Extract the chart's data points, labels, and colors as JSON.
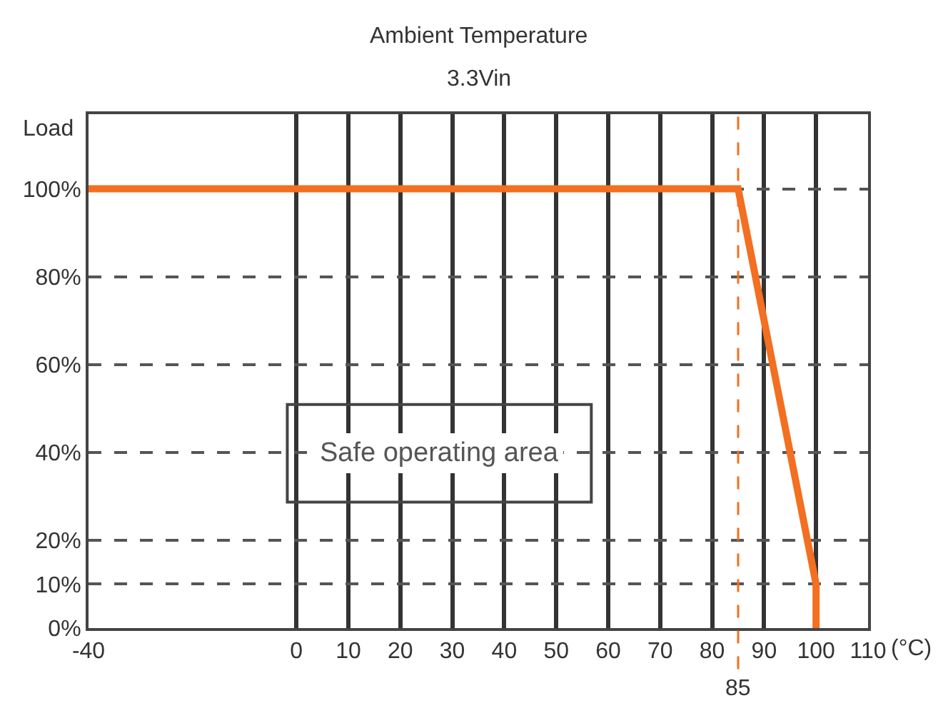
{
  "chart_data": {
    "type": "line",
    "title": "Ambient Temperature",
    "subtitle": "3.3Vin",
    "ylabel": "Load",
    "xlabel": "(°C)",
    "x": [
      -40,
      85,
      100,
      100
    ],
    "series": [
      {
        "color": "#f36f21",
        "values": [
          100,
          100,
          10,
          0
        ]
      }
    ],
    "xlim": [
      -40,
      110
    ],
    "xticks": [
      -40,
      0,
      10,
      20,
      30,
      40,
      50,
      60,
      70,
      80,
      90,
      100,
      110
    ],
    "ylim": [
      0,
      117
    ],
    "yticks": [
      {
        "value": 0,
        "label": "0%"
      },
      {
        "value": 10,
        "label": "10%"
      },
      {
        "value": 20,
        "label": "20%"
      },
      {
        "value": 40,
        "label": "40%"
      },
      {
        "value": 60,
        "label": "60%"
      },
      {
        "value": 80,
        "label": "80%"
      },
      {
        "value": 100,
        "label": "100%"
      }
    ],
    "ref_lines": [
      {
        "axis": "x",
        "value": 85,
        "label": "85",
        "color": "#f36f21",
        "line_style": "dashed"
      }
    ],
    "annotations": [
      "Safe operating area"
    ],
    "grid": true,
    "legend": false,
    "marker": "none",
    "line_style": "solid"
  }
}
